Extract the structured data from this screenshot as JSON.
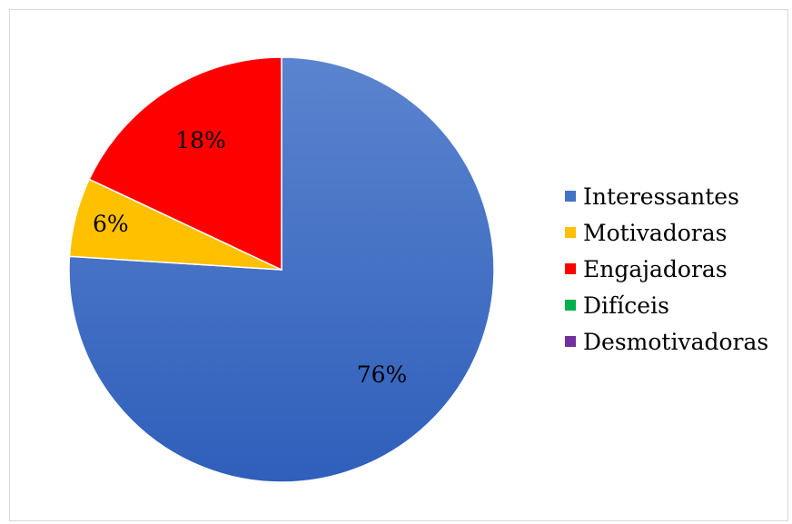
{
  "chart_data": {
    "type": "pie",
    "categories": [
      "Interessantes",
      "Motivadoras",
      "Engajadoras",
      "Difíceis",
      "Desmotivadoras"
    ],
    "values": [
      76,
      6,
      18,
      0,
      0
    ],
    "labels": [
      "76%",
      "6%",
      "18%",
      "",
      ""
    ],
    "colors": [
      "#4472C4",
      "#FFC000",
      "#FF0000",
      "#00B050",
      "#7030A0"
    ],
    "legend_position": "right",
    "start_angle": "12 o'clock",
    "direction": "clockwise"
  }
}
